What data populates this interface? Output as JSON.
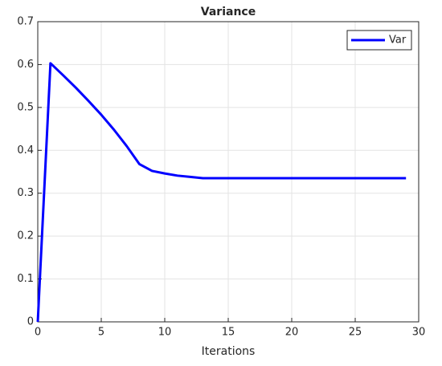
{
  "chart_data": {
    "type": "line",
    "title": "Variance",
    "xlabel": "Iterations",
    "x": [
      0,
      1,
      2,
      3,
      4,
      5,
      6,
      7,
      8,
      9,
      10,
      11,
      12,
      13,
      14,
      15,
      16,
      17,
      18,
      19,
      20,
      21,
      22,
      23,
      24,
      25,
      26,
      27,
      28,
      29
    ],
    "series": [
      {
        "name": "Var",
        "color": "#0000ff",
        "values": [
          0,
          0.603,
          0.575,
          0.546,
          0.515,
          0.483,
          0.448,
          0.41,
          0.368,
          0.352,
          0.346,
          0.341,
          0.338,
          0.335,
          0.335,
          0.335,
          0.335,
          0.335,
          0.335,
          0.335,
          0.335,
          0.335,
          0.335,
          0.335,
          0.335,
          0.335,
          0.335,
          0.335,
          0.335,
          0.335
        ]
      }
    ],
    "xlim": [
      0,
      30
    ],
    "xticks": [
      0,
      5,
      10,
      15,
      20,
      25,
      30
    ],
    "ylim": [
      0,
      0.7
    ],
    "yticks": [
      0,
      0.1,
      0.2,
      0.3,
      0.4,
      0.5,
      0.6,
      0.7
    ],
    "grid": true,
    "legend": "upper right"
  }
}
